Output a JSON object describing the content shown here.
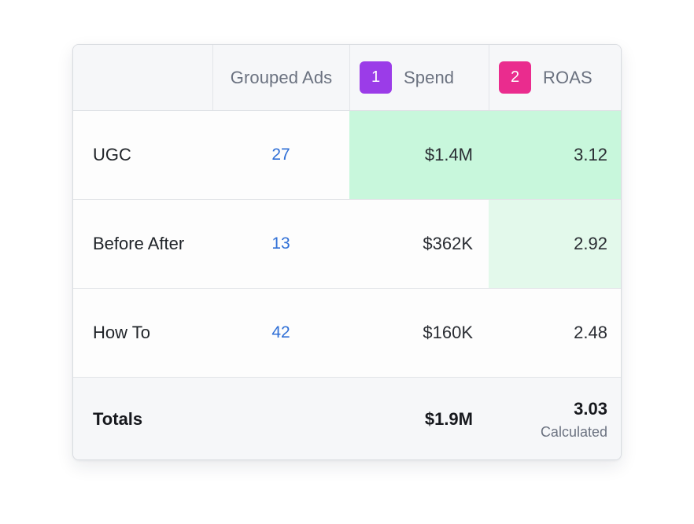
{
  "table": {
    "headers": {
      "name": "",
      "grouped_ads": "Grouped Ads",
      "spend": {
        "badge": "1",
        "label": "Spend",
        "badge_color": "#9b3ce8"
      },
      "roas": {
        "badge": "2",
        "label": "ROAS",
        "badge_color": "#ea2c8e"
      }
    },
    "rows": [
      {
        "name": "UGC",
        "grouped_ads": "27",
        "spend": "$1.4M",
        "roas": "3.12",
        "spend_highlight": "strong",
        "roas_highlight": "strong"
      },
      {
        "name": "Before After",
        "grouped_ads": "13",
        "spend": "$362K",
        "roas": "2.92",
        "spend_highlight": "none",
        "roas_highlight": "light"
      },
      {
        "name": "How To",
        "grouped_ads": "42",
        "spend": "$160K",
        "roas": "2.48",
        "spend_highlight": "none",
        "roas_highlight": "none"
      }
    ],
    "totals": {
      "label": "Totals",
      "grouped_ads": "",
      "spend": "$1.9M",
      "roas": "3.03",
      "roas_note": "Calculated"
    }
  },
  "colors": {
    "link": "#2f6fd6",
    "highlight_strong": "#c8f7dc",
    "highlight_light": "#e3f9eb"
  }
}
